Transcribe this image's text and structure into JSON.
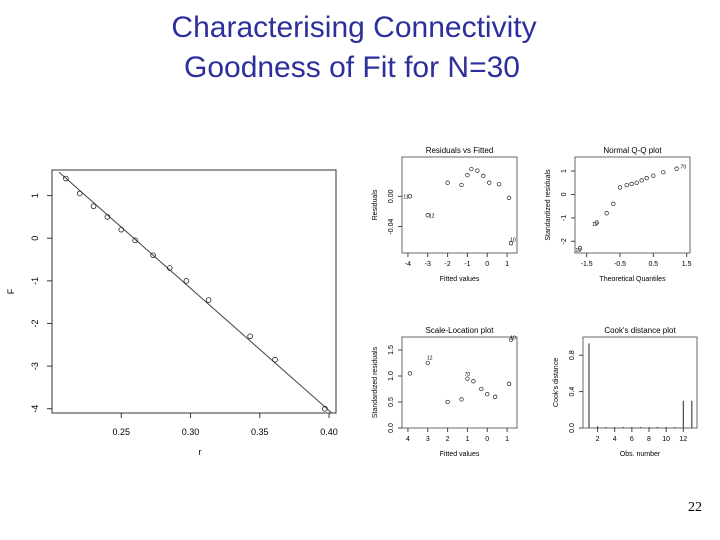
{
  "slide": {
    "title_line1": "Characterising Connectivity",
    "title_line2": "Goodness of Fit for N=30",
    "page_number": "22"
  },
  "chart_data": [
    {
      "type": "scatter",
      "title": "",
      "xlabel": "r",
      "ylabel": "F",
      "xlim": [
        0.2,
        0.405
      ],
      "ylim": [
        -4.1,
        1.6
      ],
      "xticks": [
        "0.25",
        "0.30",
        "0.35",
        "0.40"
      ],
      "yticks": [
        "1",
        "0",
        "-1",
        "-2",
        "-3",
        "-4"
      ],
      "points": {
        "x": [
          0.21,
          0.22,
          0.23,
          0.24,
          0.25,
          0.26,
          0.273,
          0.285,
          0.297,
          0.313,
          0.343,
          0.361,
          0.397
        ],
        "y": [
          1.4,
          1.05,
          0.75,
          0.5,
          0.2,
          -0.05,
          -0.4,
          -0.7,
          -1.0,
          -1.45,
          -2.3,
          -2.85,
          -4.0
        ]
      },
      "fit_line": {
        "x": [
          0.205,
          0.402
        ],
        "y": [
          1.55,
          -4.1
        ]
      }
    },
    {
      "type": "scatter",
      "title": "Residuals vs Fitted",
      "xlabel": "Fitted values",
      "ylabel": "Residuals",
      "xticks": [
        "-4",
        "-3",
        "-2",
        "-1",
        "0",
        "1"
      ],
      "yticks": [
        "0.00",
        "-0.04"
      ],
      "points": {
        "x": [
          -3.9,
          -3.0,
          -2.0,
          -1.3,
          -1.0,
          -0.8,
          -0.5,
          -0.2,
          0.1,
          0.6,
          1.1,
          1.2
        ],
        "y": [
          0.0,
          -0.025,
          0.018,
          0.015,
          0.028,
          0.036,
          0.034,
          0.027,
          0.018,
          0.016,
          -0.002,
          -0.062
        ]
      },
      "labels": [
        "11",
        "12",
        "10"
      ]
    },
    {
      "type": "scatter",
      "title": "Normal Q-Q plot",
      "xlabel": "Theoretical Quantiles",
      "ylabel": "Standardized residuals",
      "xticks": [
        "-1.5",
        "-0.5",
        "0.5",
        "1.5"
      ],
      "yticks": [
        "1",
        "0",
        "-1",
        "-2"
      ],
      "points": {
        "x": [
          -1.7,
          -1.2,
          -0.9,
          -0.7,
          -0.5,
          -0.3,
          -0.15,
          0.0,
          0.15,
          0.3,
          0.5,
          0.8,
          1.2
        ],
        "y": [
          -2.3,
          -1.2,
          -0.8,
          -0.4,
          0.3,
          0.4,
          0.45,
          0.5,
          0.6,
          0.7,
          0.8,
          0.95,
          1.1
        ]
      },
      "labels": [
        "10",
        "12",
        "70"
      ]
    },
    {
      "type": "scatter",
      "title": "Scale-Location plot",
      "xlabel": "Fitted values",
      "ylabel": "Standardized residuals",
      "xticks": [
        "4",
        "3",
        "2",
        "1",
        "0",
        "1"
      ],
      "yticks": [
        "0.0",
        "0.5",
        "1.0",
        "1.5"
      ],
      "points": {
        "x": [
          -3.9,
          -3.0,
          -2.0,
          -1.3,
          -1.0,
          -0.7,
          -0.3,
          0.0,
          0.4,
          1.1,
          1.2
        ],
        "y": [
          1.05,
          1.25,
          0.5,
          0.55,
          0.95,
          0.9,
          0.75,
          0.65,
          0.6,
          0.85,
          1.7
        ]
      },
      "labels": [
        "10",
        "12",
        "70"
      ]
    },
    {
      "type": "bar",
      "title": "Cook's distance plot",
      "xlabel": "Obs. number",
      "ylabel": "Cook's distance",
      "xticks": [
        "2",
        "4",
        "6",
        "8",
        "10",
        "12"
      ],
      "yticks": [
        "0.0",
        "0.4",
        "0.8"
      ],
      "categories": [
        1,
        2,
        3,
        4,
        5,
        6,
        7,
        8,
        9,
        10,
        11,
        12,
        13
      ],
      "values": [
        0.93,
        0.02,
        0.01,
        0.01,
        0.01,
        0.01,
        0.01,
        0.01,
        0.01,
        0.01,
        0.01,
        0.3,
        0.3
      ]
    }
  ]
}
